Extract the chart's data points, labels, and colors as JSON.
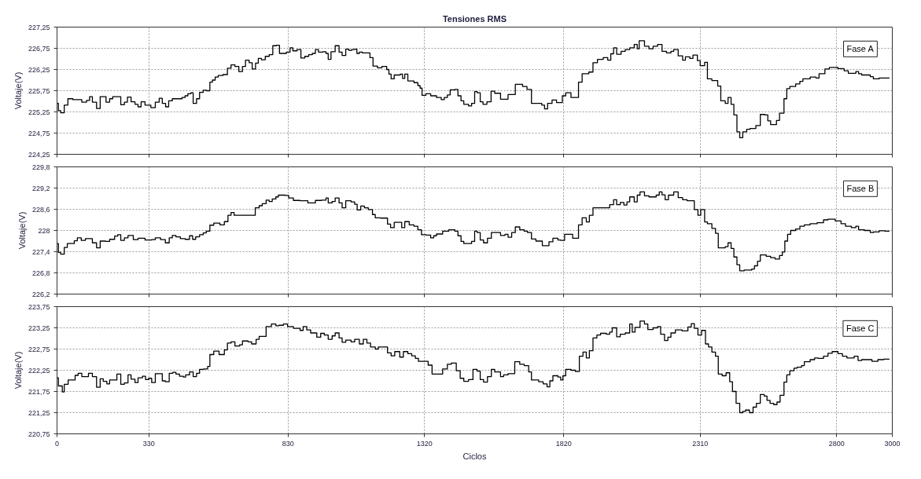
{
  "chart_data": [
    {
      "type": "step",
      "title": "Tensiones RMS",
      "ylabel": "Voltaje(V)",
      "xlim": [
        0,
        3000
      ],
      "xticks": [
        0,
        330,
        830,
        1320,
        1820,
        2310,
        2800,
        3000
      ],
      "ylim": [
        224.25,
        227.25
      ],
      "yticks": [
        {
          "value": 224.25,
          "label": "224,25"
        },
        {
          "value": 224.75,
          "label": "224,75"
        },
        {
          "value": 225.25,
          "label": "225,25"
        },
        {
          "value": 225.75,
          "label": "225,75"
        },
        {
          "value": 226.25,
          "label": "226,25"
        },
        {
          "value": 226.75,
          "label": "226,75"
        },
        {
          "value": 227.25,
          "label": "227,25"
        }
      ],
      "grid": true,
      "legend": "top right",
      "tick_labels": "y",
      "series": [
        {
          "name": "Fase A",
          "color": "#000000",
          "x": [
            0,
            5,
            13,
            26,
            39,
            57,
            89,
            106,
            117,
            127,
            142,
            155,
            176,
            189,
            200,
            229,
            242,
            253,
            266,
            280,
            291,
            302,
            316,
            337,
            353,
            367,
            378,
            390,
            401,
            414,
            449,
            460,
            470,
            481,
            489,
            501,
            512,
            525,
            536,
            549,
            558,
            568,
            579,
            596,
            612,
            625,
            639,
            653,
            666,
            677,
            690,
            701,
            713,
            723,
            734,
            748,
            762,
            775,
            788,
            799,
            824,
            837,
            847,
            862,
            876,
            890,
            904,
            917,
            928,
            939,
            955,
            966,
            974,
            984,
            999,
            1013,
            1024,
            1037,
            1048,
            1058,
            1069,
            1077,
            1086,
            1097,
            1124,
            1135,
            1151,
            1167,
            1184,
            1192,
            1200,
            1211,
            1233,
            1241,
            1249,
            1260,
            1282,
            1296,
            1304,
            1311,
            1325,
            1342,
            1363,
            1380,
            1391,
            1402,
            1412,
            1429,
            1440,
            1451,
            1461,
            1478,
            1489,
            1500,
            1509,
            1520,
            1530,
            1544,
            1559,
            1572,
            1593,
            1620,
            1646,
            1672,
            1688,
            1704,
            1741,
            1751,
            1762,
            1778,
            1794,
            1815,
            1827,
            1846,
            1873,
            1886,
            1910,
            1925,
            1941,
            1962,
            1978,
            1989,
            1999,
            2010,
            2026,
            2041,
            2057,
            2073,
            2084,
            2091,
            2110,
            2126,
            2141,
            2157,
            2173,
            2189,
            2205,
            2215,
            2231,
            2247,
            2257,
            2273,
            2284,
            2300,
            2310,
            2326,
            2336,
            2352,
            2373,
            2384,
            2400,
            2410,
            2421,
            2431,
            2442,
            2452,
            2463,
            2477,
            2489,
            2510,
            2526,
            2542,
            2553,
            2563,
            2584,
            2595,
            2611,
            2621,
            2632,
            2653,
            2668,
            2679,
            2705,
            2726,
            2737,
            2758,
            2774,
            2805,
            2827,
            2842,
            2869,
            2879,
            2890,
            2921,
            2932,
            2953,
            2990
          ],
          "values": [
            225.45,
            225.28,
            225.23,
            225.41,
            225.56,
            225.54,
            225.48,
            225.52,
            225.61,
            225.48,
            225.33,
            225.61,
            225.48,
            225.56,
            225.61,
            225.42,
            225.48,
            225.6,
            225.49,
            225.43,
            225.37,
            225.49,
            225.41,
            225.35,
            225.48,
            225.57,
            225.45,
            225.37,
            225.51,
            225.56,
            225.59,
            225.63,
            225.68,
            225.7,
            225.45,
            225.56,
            225.71,
            225.76,
            225.75,
            225.95,
            226.0,
            226.07,
            226.11,
            226.13,
            226.28,
            226.36,
            226.32,
            226.2,
            226.32,
            226.47,
            226.41,
            226.26,
            226.4,
            226.51,
            226.48,
            226.56,
            226.6,
            226.81,
            226.82,
            226.63,
            226.66,
            226.76,
            226.69,
            226.72,
            226.52,
            226.56,
            226.6,
            226.63,
            226.72,
            226.66,
            226.67,
            226.63,
            226.49,
            226.67,
            226.81,
            226.66,
            226.58,
            226.73,
            226.7,
            226.72,
            226.73,
            226.63,
            226.66,
            226.64,
            226.53,
            226.33,
            226.29,
            226.32,
            226.25,
            226.14,
            226.03,
            226.12,
            226.14,
            226.04,
            226.14,
            225.98,
            225.94,
            225.87,
            225.81,
            225.64,
            225.68,
            225.63,
            225.59,
            225.54,
            225.59,
            225.65,
            225.77,
            225.78,
            225.63,
            225.51,
            225.43,
            225.39,
            225.45,
            225.73,
            225.7,
            225.49,
            225.43,
            225.49,
            225.74,
            225.69,
            225.55,
            225.66,
            225.9,
            225.85,
            225.78,
            225.45,
            225.41,
            225.32,
            225.45,
            225.53,
            225.47,
            225.63,
            225.7,
            225.59,
            225.95,
            226.15,
            226.19,
            226.41,
            226.49,
            226.53,
            226.47,
            226.62,
            226.76,
            226.61,
            226.68,
            226.72,
            226.76,
            226.84,
            226.74,
            226.93,
            226.8,
            226.74,
            226.8,
            226.84,
            226.68,
            226.64,
            226.68,
            226.72,
            226.57,
            226.47,
            226.55,
            226.51,
            226.59,
            226.46,
            226.34,
            226.42,
            226.03,
            225.99,
            225.86,
            225.51,
            225.45,
            225.59,
            225.43,
            225.18,
            224.78,
            224.64,
            224.78,
            224.84,
            224.86,
            224.93,
            225.19,
            225.18,
            225.04,
            224.95,
            225.05,
            225.22,
            225.56,
            225.8,
            225.85,
            225.91,
            225.97,
            226.03,
            226.07,
            226.05,
            226.15,
            226.26,
            226.3,
            226.27,
            226.22,
            226.16,
            226.2,
            226.15,
            226.12,
            226.08,
            226.03,
            226.05,
            226.05
          ]
        }
      ]
    },
    {
      "type": "step",
      "ylabel": "Voltaje(V)",
      "xlim": [
        0,
        3000
      ],
      "xticks": [
        0,
        330,
        830,
        1320,
        1820,
        2310,
        2800,
        3000
      ],
      "ylim": [
        226.2,
        229.8
      ],
      "yticks": [
        {
          "value": 226.2,
          "label": "226,2"
        },
        {
          "value": 226.8,
          "label": "226,8"
        },
        {
          "value": 227.4,
          "label": "227,4"
        },
        228,
        {
          "value": 228.6,
          "label": "228,6"
        },
        {
          "value": 229.2,
          "label": "229,2"
        },
        {
          "value": 229.8,
          "label": "229,8"
        }
      ],
      "grid": true,
      "legend": "top right",
      "tick_labels": "y",
      "series": [
        {
          "name": "Fase B",
          "color": "#000000",
          "x": [
            0,
            5,
            13,
            26,
            37,
            62,
            73,
            87,
            102,
            127,
            142,
            155,
            174,
            189,
            207,
            218,
            229,
            242,
            255,
            274,
            291,
            316,
            340,
            353,
            372,
            389,
            403,
            414,
            427,
            443,
            460,
            476,
            487,
            498,
            512,
            525,
            536,
            549,
            563,
            585,
            601,
            614,
            625,
            636,
            712,
            726,
            737,
            751,
            762,
            773,
            786,
            795,
            819,
            832,
            849,
            873,
            901,
            928,
            950,
            966,
            974,
            988,
            999,
            1013,
            1024,
            1037,
            1056,
            1069,
            1078,
            1091,
            1104,
            1118,
            1133,
            1143,
            1162,
            1187,
            1198,
            1211,
            1238,
            1249,
            1265,
            1282,
            1296,
            1309,
            1325,
            1342,
            1353,
            1363,
            1385,
            1407,
            1429,
            1440,
            1451,
            1461,
            1489,
            1500,
            1509,
            1520,
            1532,
            1546,
            1560,
            1593,
            1609,
            1620,
            1633,
            1646,
            1662,
            1678,
            1690,
            1704,
            1720,
            1743,
            1767,
            1781,
            1799,
            1809,
            1823,
            1852,
            1873,
            1886,
            1901,
            1912,
            1925,
            1985,
            1999,
            2010,
            2023,
            2036,
            2047,
            2057,
            2073,
            2084,
            2094,
            2110,
            2126,
            2152,
            2163,
            2173,
            2184,
            2196,
            2215,
            2231,
            2247,
            2263,
            2289,
            2302,
            2312,
            2326,
            2336,
            2352,
            2365,
            2375,
            2400,
            2410,
            2421,
            2431,
            2442,
            2452,
            2468,
            2495,
            2505,
            2516,
            2526,
            2547,
            2563,
            2579,
            2595,
            2605,
            2614,
            2624,
            2635,
            2653,
            2668,
            2684,
            2705,
            2730,
            2753,
            2769,
            2795,
            2816,
            2832,
            2853,
            2869,
            2879,
            2900,
            2921,
            2932,
            2953,
            2974,
            2990
          ],
          "values": [
            227.63,
            227.38,
            227.33,
            227.52,
            227.63,
            227.71,
            227.79,
            227.72,
            227.77,
            227.65,
            227.51,
            227.7,
            227.69,
            227.75,
            227.84,
            227.88,
            227.72,
            227.79,
            227.86,
            227.74,
            227.78,
            227.73,
            227.74,
            227.79,
            227.74,
            227.65,
            227.79,
            227.86,
            227.82,
            227.77,
            227.75,
            227.85,
            227.75,
            227.82,
            227.88,
            227.93,
            227.98,
            228.15,
            228.21,
            228.16,
            228.25,
            228.43,
            228.51,
            228.43,
            228.64,
            228.7,
            228.76,
            228.86,
            228.82,
            228.89,
            228.95,
            229.0,
            228.99,
            228.92,
            228.85,
            228.84,
            228.78,
            228.85,
            228.86,
            228.92,
            228.78,
            228.82,
            228.92,
            228.78,
            228.64,
            228.84,
            228.81,
            228.74,
            228.58,
            228.69,
            228.64,
            228.59,
            228.45,
            228.36,
            228.35,
            228.18,
            228.08,
            228.23,
            228.08,
            228.25,
            228.16,
            228.12,
            228.02,
            227.88,
            227.87,
            227.79,
            227.85,
            227.9,
            227.98,
            228.02,
            227.98,
            227.85,
            227.69,
            227.63,
            227.69,
            227.98,
            227.94,
            227.73,
            227.65,
            227.78,
            227.94,
            227.86,
            227.89,
            227.81,
            227.94,
            228.1,
            228.02,
            227.98,
            227.94,
            227.76,
            227.7,
            227.57,
            227.68,
            227.78,
            227.73,
            227.72,
            227.89,
            227.78,
            228.16,
            228.36,
            228.24,
            228.43,
            228.64,
            228.73,
            228.87,
            228.73,
            228.79,
            228.72,
            228.81,
            228.95,
            228.81,
            229.0,
            229.09,
            228.98,
            228.95,
            229.0,
            229.09,
            229.01,
            228.87,
            229.0,
            229.09,
            228.93,
            228.87,
            228.84,
            228.59,
            228.43,
            228.59,
            228.24,
            228.19,
            228.06,
            227.92,
            227.51,
            227.54,
            227.65,
            227.49,
            227.25,
            227.03,
            226.86,
            226.88,
            226.91,
            227.0,
            227.13,
            227.31,
            227.27,
            227.23,
            227.19,
            227.29,
            227.39,
            227.7,
            227.89,
            228.0,
            228.04,
            228.12,
            228.16,
            228.19,
            228.22,
            228.3,
            228.32,
            228.27,
            228.19,
            228.12,
            228.08,
            228.12,
            228.02,
            228.0,
            227.94,
            227.96,
            227.99,
            227.98,
            227.98
          ]
        }
      ]
    },
    {
      "type": "step",
      "xlabel": "Ciclos",
      "ylabel": "Voltaje(V)",
      "xlim": [
        0,
        3000
      ],
      "xticks": [
        0,
        330,
        830,
        1320,
        1820,
        2310,
        2800,
        3000
      ],
      "ylim": [
        220.75,
        223.75
      ],
      "yticks": [
        {
          "value": 220.75,
          "label": "220,75"
        },
        {
          "value": 221.25,
          "label": "221,25"
        },
        {
          "value": 221.75,
          "label": "221,75"
        },
        {
          "value": 222.25,
          "label": "222,25"
        },
        {
          "value": 222.75,
          "label": "222,75"
        },
        {
          "value": 223.25,
          "label": "223,25"
        },
        {
          "value": 223.75,
          "label": "223,75"
        }
      ],
      "grid": true,
      "legend": "top right",
      "series": [
        {
          "name": "Fase C",
          "color": "#000000",
          "x": [
            0,
            5,
            19,
            26,
            40,
            65,
            76,
            89,
            113,
            127,
            142,
            155,
            166,
            179,
            189,
            215,
            229,
            242,
            255,
            266,
            280,
            291,
            307,
            318,
            329,
            340,
            353,
            378,
            389,
            403,
            416,
            427,
            440,
            454,
            462,
            476,
            489,
            501,
            512,
            527,
            541,
            549,
            563,
            582,
            601,
            612,
            625,
            639,
            656,
            666,
            686,
            699,
            715,
            726,
            751,
            770,
            786,
            797,
            813,
            828,
            849,
            873,
            884,
            897,
            911,
            933,
            947,
            960,
            974,
            988,
            999,
            1013,
            1024,
            1037,
            1056,
            1069,
            1086,
            1100,
            1113,
            1126,
            1143,
            1154,
            1187,
            1200,
            1213,
            1231,
            1244,
            1260,
            1274,
            1287,
            1298,
            1333,
            1347,
            1385,
            1402,
            1416,
            1434,
            1448,
            1461,
            1478,
            1494,
            1509,
            1520,
            1532,
            1546,
            1560,
            1572,
            1593,
            1604,
            1620,
            1644,
            1662,
            1678,
            1694,
            1704,
            1730,
            1746,
            1760,
            1770,
            1781,
            1799,
            1809,
            1817,
            1827,
            1846,
            1862,
            1876,
            1889,
            1901,
            1912,
            1925,
            1939,
            1952,
            1973,
            1985,
            1994,
            2010,
            2023,
            2041,
            2057,
            2066,
            2076,
            2094,
            2110,
            2122,
            2141,
            2157,
            2168,
            2182,
            2194,
            2205,
            2221,
            2245,
            2266,
            2278,
            2289,
            2302,
            2315,
            2329,
            2340,
            2352,
            2365,
            2375,
            2389,
            2403,
            2416,
            2426,
            2439,
            2452,
            2463,
            2473,
            2487,
            2500,
            2512,
            2526,
            2540,
            2550,
            2561,
            2574,
            2586,
            2597,
            2611,
            2621,
            2632,
            2647,
            2658,
            2674,
            2684,
            2705,
            2721,
            2734,
            2753,
            2769,
            2784,
            2805,
            2821,
            2837,
            2863,
            2877,
            2890,
            2927,
            2948,
            2969,
            2990
          ],
          "values": [
            222.07,
            221.88,
            221.74,
            221.92,
            222.02,
            222.13,
            222.18,
            222.1,
            222.18,
            222.1,
            221.85,
            222.05,
            221.99,
            221.93,
            222.02,
            222.16,
            221.92,
            221.95,
            222.14,
            222.04,
            221.96,
            222.07,
            222.11,
            222.03,
            222.06,
            221.96,
            222.17,
            222.0,
            221.98,
            222.18,
            222.2,
            222.16,
            222.11,
            222.09,
            222.14,
            222.21,
            222.1,
            222.18,
            222.27,
            222.28,
            222.34,
            222.62,
            222.7,
            222.62,
            222.73,
            222.89,
            222.92,
            222.82,
            222.85,
            222.94,
            222.92,
            222.87,
            222.98,
            223.05,
            223.28,
            223.34,
            223.3,
            223.31,
            223.34,
            223.28,
            223.24,
            223.19,
            223.28,
            223.2,
            223.13,
            223.03,
            223.12,
            223.08,
            222.98,
            223.06,
            223.13,
            223.01,
            222.91,
            222.96,
            222.92,
            222.98,
            222.87,
            222.98,
            222.89,
            222.8,
            222.75,
            222.8,
            222.66,
            222.59,
            222.69,
            222.56,
            222.69,
            222.64,
            222.59,
            222.53,
            222.46,
            222.37,
            222.16,
            222.28,
            222.39,
            222.42,
            222.24,
            222.06,
            221.99,
            222.03,
            222.27,
            222.23,
            222.03,
            221.97,
            222.1,
            222.27,
            222.21,
            222.1,
            222.14,
            222.17,
            222.45,
            222.39,
            222.36,
            222.21,
            222.02,
            221.98,
            221.93,
            221.86,
            222.0,
            222.12,
            222.09,
            222.02,
            222.12,
            222.27,
            222.25,
            222.22,
            222.58,
            222.68,
            222.54,
            222.71,
            223.01,
            223.08,
            223.12,
            223.1,
            223.15,
            223.25,
            223.04,
            223.1,
            223.13,
            223.34,
            223.15,
            223.26,
            223.41,
            223.34,
            223.21,
            223.25,
            223.28,
            223.1,
            222.95,
            223.03,
            223.13,
            223.2,
            223.18,
            223.27,
            223.35,
            223.24,
            223.08,
            223.19,
            222.87,
            222.8,
            222.68,
            222.58,
            222.16,
            222.12,
            222.19,
            221.98,
            221.75,
            221.47,
            221.25,
            221.28,
            221.31,
            221.25,
            221.38,
            221.47,
            221.68,
            221.64,
            221.54,
            221.47,
            221.44,
            221.5,
            221.66,
            221.97,
            222.14,
            222.24,
            222.3,
            222.32,
            222.36,
            222.45,
            222.5,
            222.54,
            222.53,
            222.58,
            222.65,
            222.69,
            222.64,
            222.58,
            222.54,
            222.58,
            222.48,
            222.5,
            222.46,
            222.5,
            222.51,
            222.51
          ]
        }
      ]
    }
  ]
}
